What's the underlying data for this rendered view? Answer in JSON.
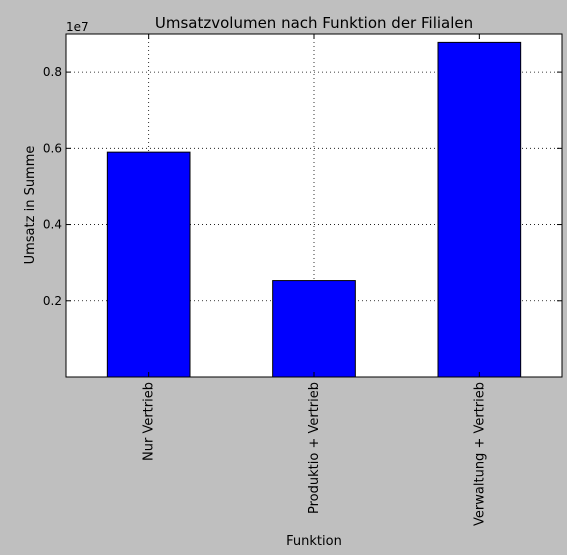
{
  "chart_data": {
    "type": "bar",
    "title": "Umsatzvolumen nach Funktion der Filialen",
    "xlabel": "Funktion",
    "ylabel": "Umsatz in Summe",
    "y_offset_text": "1e7",
    "y_scale": 10000000,
    "categories": [
      "Nur Vertrieb",
      "Produktio + Vertrieb",
      "Verwaltung + Vertrieb"
    ],
    "values": [
      5900000,
      2530000,
      8780000
    ],
    "ylim": [
      0,
      9000000
    ],
    "yticks": [
      2000000,
      4000000,
      6000000,
      8000000
    ],
    "yticklabels": [
      "0.2",
      "0.4",
      "0.6",
      "0.8"
    ],
    "grid": true,
    "bar_color": "#0000ff",
    "background": "#bfbfbf",
    "plot_background": "#ffffff"
  }
}
